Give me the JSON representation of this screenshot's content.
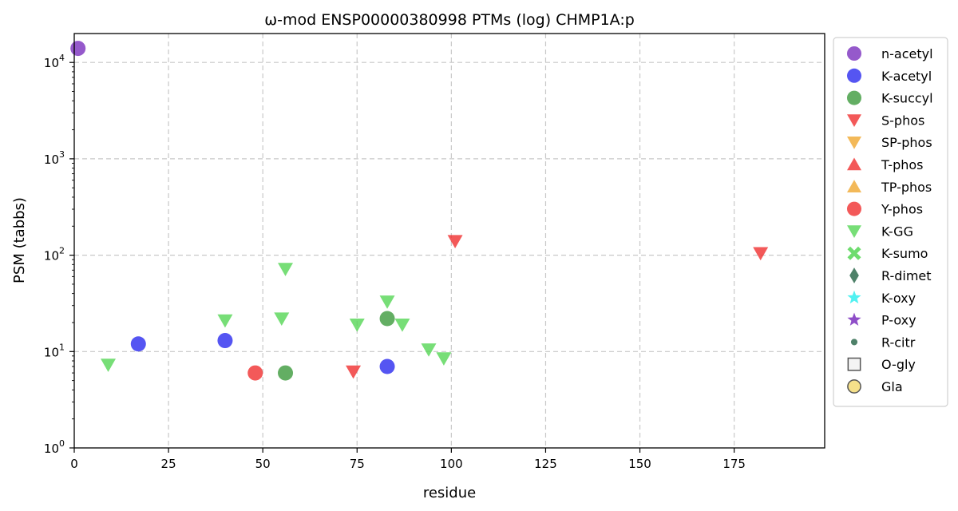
{
  "chart_data": {
    "type": "scatter",
    "title": "ω-mod ENSP00000380998 PTMs (log) CHMP1A:p",
    "xlabel": "residue",
    "ylabel": "PSM (tabbs)",
    "xlim": [
      0,
      199
    ],
    "ylim_log10": [
      0,
      4.3
    ],
    "yscale": "log",
    "grid": true,
    "legend_position": "outside-right",
    "x_ticks": [
      "0",
      "25",
      "50",
      "75",
      "100",
      "125",
      "150",
      "175"
    ],
    "x_tick_values": [
      0,
      25,
      50,
      75,
      100,
      125,
      150,
      175
    ],
    "y_tick_labels": [
      {
        "base": "10",
        "exp": "0"
      },
      {
        "base": "10",
        "exp": "1"
      },
      {
        "base": "10",
        "exp": "2"
      },
      {
        "base": "10",
        "exp": "3"
      },
      {
        "base": "10",
        "exp": "4"
      }
    ],
    "y_tick_values": [
      1,
      10,
      100,
      1000,
      10000
    ],
    "series": [
      {
        "name": "n-acetyl",
        "marker": "circle",
        "color": "#7b2fbe",
        "points": [
          {
            "x": 1,
            "y": 14000
          }
        ]
      },
      {
        "name": "K-acetyl",
        "marker": "circle",
        "color": "#2b2bef",
        "points": [
          {
            "x": 17,
            "y": 12
          },
          {
            "x": 40,
            "y": 13
          },
          {
            "x": 83,
            "y": 7
          }
        ]
      },
      {
        "name": "K-succyl",
        "marker": "circle",
        "color": "#3c9a3c",
        "points": [
          {
            "x": 56,
            "y": 6
          },
          {
            "x": 83,
            "y": 22
          }
        ]
      },
      {
        "name": "S-phos",
        "marker": "triangle-down",
        "color": "#f03030",
        "points": [
          {
            "x": 74,
            "y": 6.2
          },
          {
            "x": 101,
            "y": 140
          },
          {
            "x": 182,
            "y": 105
          }
        ]
      },
      {
        "name": "SP-phos",
        "marker": "triangle-down",
        "color": "#f0a830",
        "points": []
      },
      {
        "name": "T-phos",
        "marker": "triangle-up",
        "color": "#f03030",
        "points": []
      },
      {
        "name": "TP-phos",
        "marker": "triangle-up",
        "color": "#f0a830",
        "points": []
      },
      {
        "name": "Y-phos",
        "marker": "circle",
        "color": "#f03030",
        "points": [
          {
            "x": 48,
            "y": 6
          }
        ]
      },
      {
        "name": "K-GG",
        "marker": "triangle-down",
        "color": "#55d655",
        "points": [
          {
            "x": 9,
            "y": 7.3
          },
          {
            "x": 40,
            "y": 21
          },
          {
            "x": 55,
            "y": 22
          },
          {
            "x": 56,
            "y": 72
          },
          {
            "x": 75,
            "y": 19
          },
          {
            "x": 83,
            "y": 33
          },
          {
            "x": 87,
            "y": 19
          },
          {
            "x": 94,
            "y": 10.5
          },
          {
            "x": 98,
            "y": 8.5
          }
        ]
      },
      {
        "name": "K-sumo",
        "marker": "x",
        "color": "#55d655",
        "points": []
      },
      {
        "name": "R-dimet",
        "marker": "diamond",
        "color": "#2f6b4f",
        "points": []
      },
      {
        "name": "K-oxy",
        "marker": "star",
        "color": "#33eeee",
        "points": []
      },
      {
        "name": "P-oxy",
        "marker": "star",
        "color": "#7b2fbe",
        "points": []
      },
      {
        "name": "R-citr",
        "marker": "small-circle",
        "color": "#2f6b4f",
        "points": []
      },
      {
        "name": "O-gly",
        "marker": "square-open",
        "color": "#555555",
        "points": []
      },
      {
        "name": "Gla",
        "marker": "circle-yellow",
        "color": "#f5e08a",
        "points": []
      }
    ]
  }
}
